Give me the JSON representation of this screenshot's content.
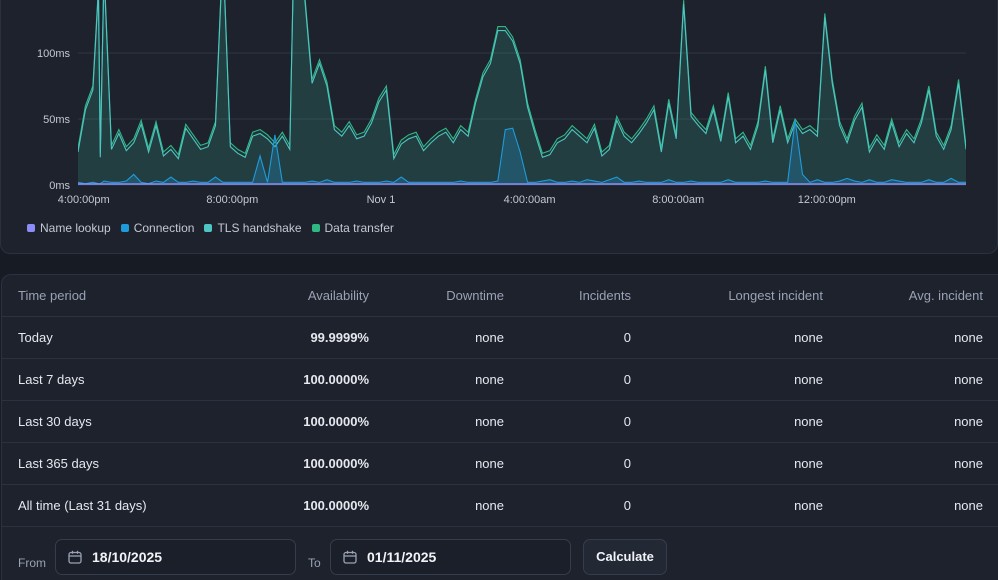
{
  "chart_data": {
    "type": "area",
    "y_ticks": [
      "0ms",
      "50ms",
      "100ms"
    ],
    "y_tick_values": [
      0,
      50,
      100
    ],
    "ylim": [
      0,
      140
    ],
    "x_ticks": [
      "4:00:00pm",
      "8:00:00pm",
      "Nov 1",
      "4:00:00am",
      "8:00:00am",
      "12:00:00pm"
    ],
    "x_tick_values": [
      16,
      20,
      24,
      28,
      32,
      36
    ],
    "xlim": [
      15.9,
      39.8
    ],
    "stacked": true,
    "legend_position": "bottom-left",
    "grid": true,
    "series": [
      {
        "name": "Name lookup",
        "color": "#8b8cf5"
      },
      {
        "name": "Connection",
        "color": "#1f9bdc"
      },
      {
        "name": "TLS handshake",
        "color": "#4fc4c4"
      },
      {
        "name": "Data transfer",
        "color": "#2fb884"
      }
    ],
    "x": [
      15.9,
      16.1,
      16.3,
      16.45,
      16.5,
      16.6,
      16.8,
      17.0,
      17.2,
      17.4,
      17.6,
      17.8,
      18.0,
      18.2,
      18.4,
      18.6,
      18.8,
      19.0,
      19.2,
      19.4,
      19.6,
      19.8,
      20.0,
      20.2,
      20.4,
      20.6,
      20.8,
      21.0,
      21.2,
      21.4,
      21.6,
      21.8,
      22.0,
      22.2,
      22.4,
      22.6,
      22.8,
      23.0,
      23.2,
      23.4,
      23.6,
      23.8,
      24.0,
      24.2,
      24.4,
      24.6,
      24.8,
      25.0,
      25.2,
      25.4,
      25.6,
      25.8,
      26.0,
      26.2,
      26.4,
      26.6,
      26.8,
      27.0,
      27.2,
      27.4,
      27.6,
      27.8,
      28.0,
      28.2,
      28.4,
      28.6,
      28.8,
      29.0,
      29.2,
      29.4,
      29.6,
      29.8,
      30.0,
      30.2,
      30.4,
      30.6,
      30.8,
      31.0,
      31.2,
      31.4,
      31.6,
      31.8,
      32.0,
      32.2,
      32.4,
      32.6,
      32.8,
      33.0,
      33.2,
      33.4,
      33.6,
      33.8,
      34.0,
      34.2,
      34.4,
      34.6,
      34.8,
      35.0,
      35.2,
      35.4,
      35.6,
      35.8,
      36.0,
      36.2,
      36.4,
      36.6,
      36.8,
      37.0,
      37.2,
      37.4,
      37.6,
      37.8,
      38.0,
      38.2,
      38.4,
      38.6,
      38.8,
      39.0,
      39.2,
      39.4,
      39.6,
      39.8
    ],
    "connection_ms": [
      2,
      1,
      2,
      1,
      1,
      3,
      2,
      2,
      3,
      8,
      2,
      1,
      3,
      2,
      6,
      2,
      2,
      3,
      2,
      2,
      6,
      2,
      2,
      2,
      2,
      2,
      22,
      2,
      38,
      2,
      2,
      2,
      2,
      3,
      2,
      4,
      2,
      2,
      2,
      3,
      2,
      2,
      2,
      3,
      2,
      6,
      2,
      2,
      2,
      2,
      2,
      2,
      2,
      3,
      2,
      2,
      2,
      2,
      3,
      42,
      43,
      25,
      2,
      2,
      3,
      4,
      2,
      2,
      3,
      2,
      4,
      3,
      2,
      4,
      6,
      2,
      2,
      3,
      2,
      2,
      2,
      4,
      2,
      2,
      3,
      2,
      2,
      2,
      2,
      4,
      2,
      2,
      2,
      2,
      3,
      2,
      2,
      2,
      49,
      8,
      2,
      4,
      2,
      2,
      3,
      5,
      3,
      2,
      4,
      2,
      2,
      4,
      3,
      2,
      2,
      2,
      4,
      2,
      2,
      5,
      2,
      2
    ],
    "total_ms": [
      28,
      60,
      75,
      150,
      24,
      165,
      30,
      42,
      29,
      35,
      49,
      28,
      48,
      25,
      30,
      23,
      46,
      38,
      30,
      32,
      48,
      180,
      32,
      27,
      24,
      40,
      42,
      38,
      32,
      40,
      30,
      300,
      145,
      80,
      95,
      78,
      45,
      40,
      48,
      38,
      40,
      50,
      66,
      75,
      23,
      34,
      38,
      40,
      29,
      35,
      40,
      43,
      35,
      45,
      40,
      65,
      85,
      95,
      120,
      120,
      112,
      95,
      62,
      42,
      24,
      26,
      35,
      38,
      45,
      40,
      35,
      46,
      25,
      30,
      52,
      40,
      35,
      42,
      50,
      60,
      28,
      65,
      38,
      140,
      55,
      48,
      42,
      60,
      36,
      70,
      35,
      40,
      30,
      48,
      90,
      35,
      60,
      35,
      50,
      42,
      45,
      40,
      130,
      80,
      48,
      35,
      52,
      62,
      28,
      38,
      30,
      50,
      32,
      42,
      35,
      50,
      75,
      40,
      30,
      45,
      80,
      30
    ]
  },
  "table": {
    "headers": [
      "Time period",
      "Availability",
      "Downtime",
      "Incidents",
      "Longest incident",
      "Avg. incident"
    ],
    "rows": [
      [
        "Today",
        "99.9999%",
        "none",
        "0",
        "none",
        "none"
      ],
      [
        "Last 7 days",
        "100.0000%",
        "none",
        "0",
        "none",
        "none"
      ],
      [
        "Last 30 days",
        "100.0000%",
        "none",
        "0",
        "none",
        "none"
      ],
      [
        "Last 365 days",
        "100.0000%",
        "none",
        "0",
        "none",
        "none"
      ],
      [
        "All time (Last 31 days)",
        "100.0000%",
        "none",
        "0",
        "none",
        "none"
      ]
    ]
  },
  "footer": {
    "from_label": "From",
    "from_value": "18/10/2025",
    "to_label": "To",
    "to_value": "01/11/2025",
    "calculate_label": "Calculate",
    "calendar_icon": "calendar-icon"
  }
}
